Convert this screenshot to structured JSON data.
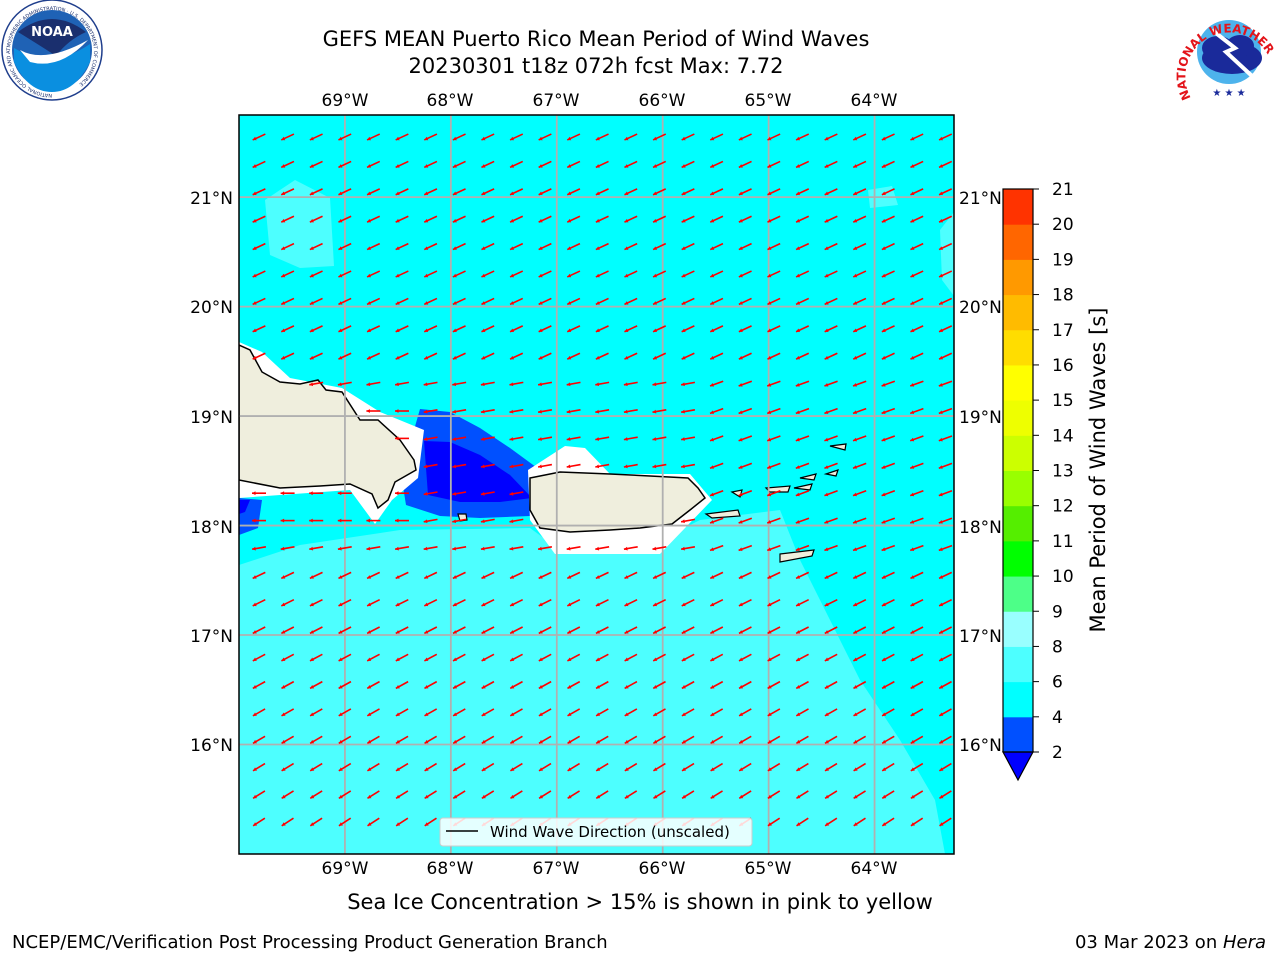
{
  "title_line1": "GEFS MEAN Puerto Rico Mean Period of Wind Waves",
  "title_line2": "20230301 t18z 072h fcst   Max: 7.72",
  "subtitle": "Sea Ice Concentration > 15% is shown in pink to yellow",
  "footer_left": "NCEP/EMC/Verification Post Processing Product Generation Branch",
  "footer_date": "03 Mar 2023 on ",
  "footer_host": "Hera",
  "logos": {
    "noaa_text": "NOAA",
    "noaa_ring_text": "NATIONAL OCEANIC AND ATMOSPHERIC ADMINISTRATION · U.S. DEPARTMENT OF COMMERCE",
    "nws_ring_text": "NATIONAL WEATHER SERVICE"
  },
  "legend": {
    "label": "Wind Wave Direction (unscaled)"
  },
  "colorbar": {
    "title": "Mean Period of Wind Waves [s]",
    "ticks": [
      "2",
      "4",
      "6",
      "8",
      "9",
      "10",
      "11",
      "12",
      "13",
      "14",
      "15",
      "16",
      "17",
      "18",
      "19",
      "20",
      "21"
    ],
    "colors": [
      "#0050ff",
      "#00ffff",
      "#4dffff",
      "#99ffff",
      "#4dff88",
      "#00ff00",
      "#55ee00",
      "#99ff00",
      "#ccff00",
      "#eeff00",
      "#ffff00",
      "#ffdd00",
      "#ffbb00",
      "#ff9900",
      "#ff6600",
      "#ff3300",
      "#ff0000"
    ],
    "under_color": "#0000ff"
  },
  "chart_data": {
    "type": "heatmap",
    "lon_ticks": [
      "69°W",
      "68°W",
      "67°W",
      "66°W",
      "65°W",
      "64°W"
    ],
    "lat_ticks": [
      "21°N",
      "20°N",
      "19°N",
      "18°N",
      "17°N",
      "16°N"
    ],
    "lon_range": [
      -70.0,
      -63.25
    ],
    "lat_range": [
      15.0,
      21.75
    ],
    "max_value": 7.72,
    "levels": [
      2,
      4,
      6,
      8,
      9,
      10,
      11,
      12,
      13,
      14,
      15,
      16,
      17,
      18,
      19,
      20,
      21
    ],
    "arrow_color": "#ff0000",
    "land_color": "#efeedd",
    "grid": true
  }
}
